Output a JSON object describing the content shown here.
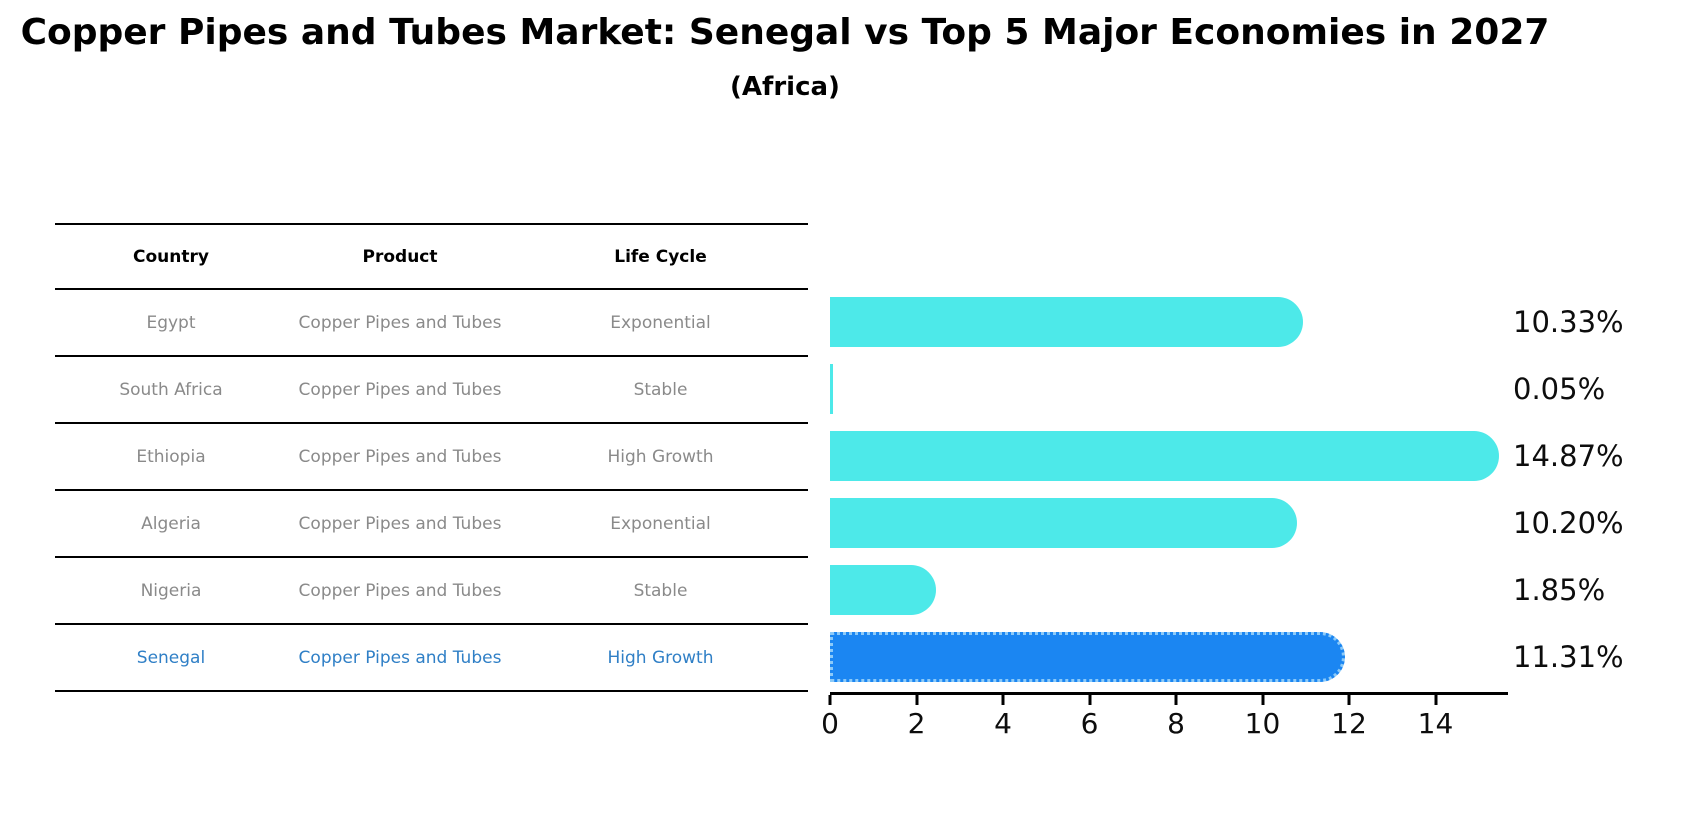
{
  "title": "Copper Pipes and Tubes Market: Senegal vs Top 5 Major Economies in 2027",
  "subtitle": "(Africa)",
  "table": {
    "columns": [
      "Country",
      "Product",
      "Life Cycle"
    ],
    "rows": [
      {
        "country": "Egypt",
        "product": "Copper Pipes and Tubes",
        "life_cycle": "Exponential",
        "highlighted": false
      },
      {
        "country": "South Africa",
        "product": "Copper Pipes and Tubes",
        "life_cycle": "Stable",
        "highlighted": false
      },
      {
        "country": "Ethiopia",
        "product": "Copper Pipes and Tubes",
        "life_cycle": "High Growth",
        "highlighted": false
      },
      {
        "country": "Algeria",
        "product": "Copper Pipes and Tubes",
        "life_cycle": "Exponential",
        "highlighted": false
      },
      {
        "country": "Nigeria",
        "product": "Copper Pipes and Tubes",
        "life_cycle": "Stable",
        "highlighted": false
      },
      {
        "country": "Senegal",
        "product": "Copper Pipes and Tubes",
        "life_cycle": "High Growth",
        "highlighted": true
      }
    ]
  },
  "chart_data": {
    "type": "bar",
    "orientation": "horizontal",
    "title": "Copper Pipes and Tubes Market: Senegal vs Top 5 Major Economies in 2027 (Africa)",
    "categories": [
      "Egypt",
      "South Africa",
      "Ethiopia",
      "Algeria",
      "Nigeria",
      "Senegal"
    ],
    "values": [
      10.33,
      0.05,
      14.87,
      10.2,
      1.85,
      11.31
    ],
    "value_labels": [
      "10.33%",
      "0.05%",
      "14.87%",
      "10.20%",
      "1.85%",
      "11.31%"
    ],
    "unit": "percent CAGR",
    "xticks": [
      0,
      2,
      4,
      6,
      8,
      10,
      12,
      14
    ],
    "xlim": [
      0,
      15.7
    ],
    "grid": false,
    "legend": "none",
    "highlight_category": "Senegal"
  },
  "colors": {
    "bar": "#4de9e9",
    "highlight_bar": "#1b86f2",
    "highlight_border": "#8ccaf8",
    "highlight_text": "#2f7fc6",
    "row_text": "#8a8a8a",
    "axis": "#000000"
  }
}
